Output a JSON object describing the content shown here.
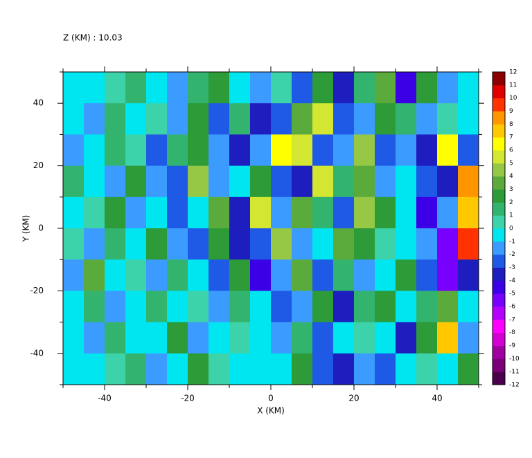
{
  "chart_data": {
    "type": "heatmap",
    "title": "Z (KM) : 10.03",
    "x_label": "X (KM)",
    "y_label": "Y (KM)",
    "xlim": [
      -50,
      50
    ],
    "ylim": [
      -50,
      50
    ],
    "xticks": [
      -40,
      -20,
      0,
      20,
      40
    ],
    "yticks": [
      -40,
      -20,
      0,
      20,
      40
    ],
    "xticks_minor": [
      -50,
      -30,
      -10,
      10,
      30,
      50
    ],
    "yticks_minor": [
      -50,
      -30,
      -10,
      10,
      30,
      50
    ],
    "x": [
      -47.5,
      -42.5,
      -37.5,
      -32.5,
      -27.5,
      -22.5,
      -17.5,
      -12.5,
      -7.5,
      -2.5,
      2.5,
      7.5,
      12.5,
      17.5,
      22.5,
      27.5,
      32.5,
      37.5,
      42.5,
      47.5
    ],
    "y": [
      45,
      35,
      25,
      15,
      5,
      -5,
      -15,
      -25,
      -35,
      -45
    ],
    "z": [
      [
        -1,
        -1,
        0,
        1,
        -1,
        -2,
        1,
        2,
        -1,
        -2,
        0,
        -3,
        2,
        -4,
        1,
        3,
        -5,
        2,
        -2,
        -1
      ],
      [
        -1,
        -2,
        1,
        -1,
        0,
        -2,
        2,
        -3,
        1,
        -4,
        -3,
        3,
        5,
        -3,
        -2,
        2,
        1,
        -2,
        0,
        -1
      ],
      [
        -2,
        -1,
        1,
        0,
        -3,
        1,
        2,
        -2,
        -4,
        -2,
        6,
        5,
        -3,
        -2,
        4,
        -3,
        -2,
        -4,
        6,
        -3
      ],
      [
        1,
        -1,
        -2,
        2,
        -2,
        -3,
        4,
        -2,
        -1,
        2,
        -3,
        -4,
        5,
        1,
        3,
        -2,
        -1,
        -3,
        -4,
        8
      ],
      [
        -1,
        0,
        2,
        -2,
        -1,
        -3,
        -1,
        3,
        -4,
        5,
        -2,
        3,
        1,
        -3,
        4,
        2,
        -1,
        -5,
        -2,
        7
      ],
      [
        0,
        -2,
        1,
        -1,
        2,
        -2,
        -3,
        2,
        -4,
        -3,
        4,
        -2,
        -1,
        3,
        2,
        0,
        -1,
        -2,
        -6,
        9
      ],
      [
        -2,
        3,
        -1,
        0,
        -2,
        1,
        -1,
        -3,
        2,
        -5,
        -2,
        3,
        -3,
        1,
        -2,
        -1,
        2,
        -3,
        -6,
        -4
      ],
      [
        -1,
        1,
        -2,
        -1,
        1,
        -1,
        0,
        -2,
        1,
        -1,
        -3,
        -2,
        2,
        -4,
        1,
        2,
        -1,
        1,
        3,
        -1
      ],
      [
        -1,
        -2,
        1,
        -1,
        -1,
        2,
        -2,
        -1,
        0,
        -1,
        -2,
        1,
        -3,
        -1,
        0,
        -1,
        -4,
        2,
        7,
        -2
      ],
      [
        -1,
        -1,
        0,
        1,
        -2,
        -1,
        2,
        0,
        -1,
        -1,
        -1,
        2,
        -3,
        -4,
        -2,
        -3,
        -1,
        0,
        -1,
        2
      ]
    ],
    "levels": [
      -12,
      -11,
      -10,
      -9,
      -8,
      -7,
      -6,
      -5,
      -4,
      -3,
      -2,
      -1,
      0,
      1,
      2,
      3,
      4,
      5,
      6,
      7,
      8,
      9,
      10,
      11,
      12
    ],
    "colors": [
      "#4b004b",
      "#7a007a",
      "#a000a0",
      "#d200d2",
      "#ff00ff",
      "#b400ff",
      "#7800ff",
      "#3c00e6",
      "#1e1ebe",
      "#1e5ae6",
      "#3c9bff",
      "#00e6f0",
      "#3cd2aa",
      "#32b46e",
      "#2d9b37",
      "#5aaa3c",
      "#96c846",
      "#d2e632",
      "#ffff00",
      "#ffc800",
      "#ff9600",
      "#ff3200",
      "#e00000",
      "#8c0000"
    ]
  }
}
